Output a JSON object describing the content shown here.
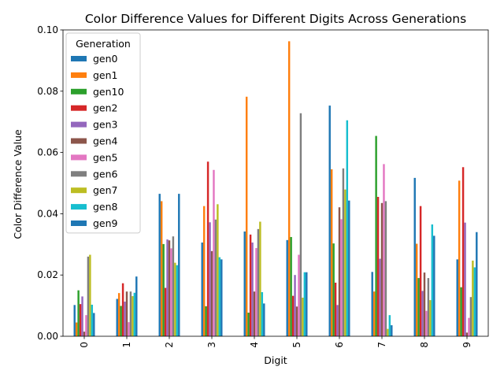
{
  "chart_data": {
    "type": "bar",
    "title": "Color Difference Values for Different Digits Across Generations",
    "xlabel": "Digit",
    "ylabel": "Color Difference Value",
    "categories": [
      "0",
      "1",
      "2",
      "3",
      "4",
      "5",
      "6",
      "7",
      "8",
      "9"
    ],
    "ylim": [
      0,
      0.1
    ],
    "yticks": [
      "0.00",
      "0.02",
      "0.04",
      "0.06",
      "0.08",
      "0.10"
    ],
    "grid": false,
    "legend": {
      "title": "Generation",
      "placement": "top-left"
    },
    "series": [
      {
        "name": "gen0",
        "color": "#1f77b4",
        "values": [
          0.0102,
          0.0122,
          0.0465,
          0.0306,
          0.0342,
          0.0314,
          0.0753,
          0.021,
          0.0517,
          0.0251
        ]
      },
      {
        "name": "gen1",
        "color": "#ff7f0e",
        "values": [
          0.0045,
          0.0141,
          0.0441,
          0.0425,
          0.0782,
          0.0963,
          0.0545,
          0.0146,
          0.0302,
          0.0508
        ]
      },
      {
        "name": "gen10",
        "color": "#2ca02c",
        "values": [
          0.015,
          0.0099,
          0.0301,
          0.0098,
          0.0077,
          0.0324,
          0.0303,
          0.0654,
          0.019,
          0.016
        ]
      },
      {
        "name": "gen2",
        "color": "#d62728",
        "values": [
          0.0105,
          0.0173,
          0.0158,
          0.057,
          0.0332,
          0.0132,
          0.0175,
          0.0455,
          0.0425,
          0.0552
        ]
      },
      {
        "name": "gen3",
        "color": "#9467bd",
        "values": [
          0.013,
          0.0113,
          0.0316,
          0.0372,
          0.0306,
          0.02,
          0.0102,
          0.0253,
          0.0148,
          0.0371
        ]
      },
      {
        "name": "gen4",
        "color": "#8c564b",
        "values": [
          0.0015,
          0.0146,
          0.0313,
          0.0278,
          0.0146,
          0.0097,
          0.0421,
          0.0435,
          0.0208,
          0.0012
        ]
      },
      {
        "name": "gen5",
        "color": "#e377c2",
        "values": [
          0.0069,
          0.0046,
          0.0287,
          0.0543,
          0.0288,
          0.0266,
          0.0382,
          0.0562,
          0.0083,
          0.006
        ]
      },
      {
        "name": "gen6",
        "color": "#7f7f7f",
        "values": [
          0.026,
          0.0146,
          0.0326,
          0.0381,
          0.035,
          0.0728,
          0.0548,
          0.0441,
          0.019,
          0.0128
        ]
      },
      {
        "name": "gen7",
        "color": "#bcbd22",
        "values": [
          0.0266,
          0.0131,
          0.024,
          0.0431,
          0.0374,
          0.0126,
          0.0479,
          0.0024,
          0.0118,
          0.0247
        ]
      },
      {
        "name": "gen8",
        "color": "#17becf",
        "values": [
          0.0103,
          0.0142,
          0.0232,
          0.0258,
          0.0144,
          0.0209,
          0.0705,
          0.0069,
          0.0365,
          0.0225
        ]
      },
      {
        "name": "gen9",
        "color": "#1f77b4",
        "values": [
          0.0076,
          0.0195,
          0.0465,
          0.0251,
          0.0107,
          0.0209,
          0.0443,
          0.0036,
          0.0328,
          0.034
        ]
      }
    ]
  }
}
